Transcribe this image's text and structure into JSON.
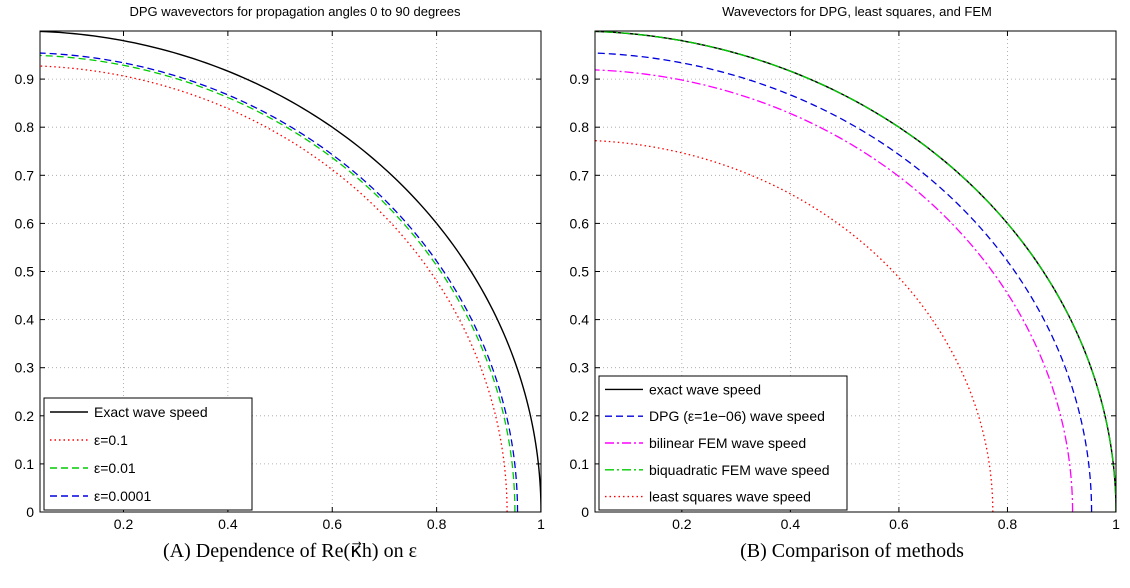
{
  "chart_data": [
    {
      "type": "line",
      "title": "DPG wavevectors for propagation angles 0 to 90 degrees",
      "caption": "(A) Dependence of Re(κ⃗h) on ε",
      "xlim": [
        0.04,
        1.0
      ],
      "ylim": [
        0,
        1.0
      ],
      "xticks": [
        "0.2",
        "0.4",
        "0.6",
        "0.8",
        "1"
      ],
      "yticks": [
        "0",
        "0.1",
        "0.2",
        "0.3",
        "0.4",
        "0.5",
        "0.6",
        "0.7",
        "0.8",
        "0.9"
      ],
      "grid": true,
      "legend_position": "bottom-left",
      "series": [
        {
          "name": "Exact wave speed",
          "color": "#000000",
          "style": "solid",
          "radius_x": 1.0,
          "radius_y": 1.0
        },
        {
          "name": "ε=0.1",
          "color": "#ff0000",
          "style": "dotted",
          "radius_x": 0.935,
          "radius_y": 0.928
        },
        {
          "name": "ε=0.01",
          "color": "#00cc00",
          "style": "dashed",
          "radius_x": 0.95,
          "radius_y": 0.95
        },
        {
          "name": "ε=0.0001",
          "color": "#0000dd",
          "style": "dashed",
          "radius_x": 0.955,
          "radius_y": 0.955
        }
      ]
    },
    {
      "type": "line",
      "title": "Wavevectors for DPG, least squares, and FEM",
      "caption": "(B) Comparison of methods",
      "xlim": [
        0.04,
        1.0
      ],
      "ylim": [
        0,
        1.0
      ],
      "xticks": [
        "0.2",
        "0.4",
        "0.6",
        "0.8",
        "1"
      ],
      "yticks": [
        "0",
        "0.1",
        "0.2",
        "0.3",
        "0.4",
        "0.5",
        "0.6",
        "0.7",
        "0.8",
        "0.9"
      ],
      "grid": true,
      "legend_position": "bottom-left",
      "series": [
        {
          "name": "exact wave speed",
          "color": "#000000",
          "style": "solid",
          "radius_x": 1.0,
          "radius_y": 1.0
        },
        {
          "name": "DPG (ε=1e−06) wave speed",
          "color": "#0000dd",
          "style": "dashed",
          "radius_x": 0.955,
          "radius_y": 0.955
        },
        {
          "name": "bilinear FEM wave speed",
          "color": "#ff00ff",
          "style": "dashdot",
          "radius_x": 0.92,
          "radius_y": 0.92
        },
        {
          "name": "biquadratic FEM wave speed",
          "color": "#00cc00",
          "style": "dashdot",
          "radius_x": 1.0,
          "radius_y": 1.0
        },
        {
          "name": "least squares wave speed",
          "color": "#ff0000",
          "style": "dotted",
          "radius_x": 0.773,
          "radius_y": 0.773
        }
      ]
    }
  ]
}
